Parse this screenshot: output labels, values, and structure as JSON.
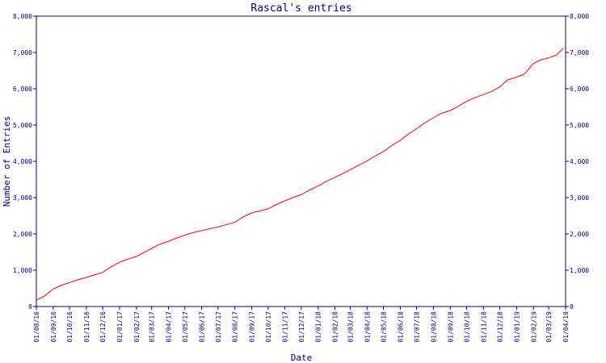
{
  "chart_data": {
    "type": "line",
    "title": "Rascal's entries",
    "xlabel": "Date",
    "ylabel": "Number of Entries",
    "ylim": [
      0,
      8000
    ],
    "yticks": [
      "0",
      "1,000",
      "2,000",
      "3,000",
      "4,000",
      "5,000",
      "6,000",
      "7,000",
      "8,000"
    ],
    "y_tick_values": [
      0,
      1000,
      2000,
      3000,
      4000,
      5000,
      6000,
      7000,
      8000
    ],
    "right_axis_mirrors_left": true,
    "xticks": [
      "01/08/16",
      "01/09/16",
      "01/10/16",
      "01/11/16",
      "01/12/16",
      "01/01/17",
      "01/02/17",
      "01/03/17",
      "01/04/17",
      "01/05/17",
      "01/06/17",
      "01/07/17",
      "01/08/17",
      "01/09/17",
      "01/10/17",
      "01/11/17",
      "01/12/17",
      "01/01/18",
      "01/02/18",
      "01/03/18",
      "01/04/18",
      "01/05/18",
      "01/06/18",
      "01/07/18",
      "01/08/18",
      "01/09/18",
      "01/10/18",
      "01/11/18",
      "01/12/18",
      "01/01/19",
      "01/02/19",
      "01/03/19",
      "01/04/19"
    ],
    "grid": false,
    "line_color": "#ff0000",
    "axis_color": "#000080",
    "series": [
      {
        "name": "",
        "x": [
          "2016-08-01",
          "2016-08-15",
          "2016-09-01",
          "2016-09-15",
          "2016-10-01",
          "2016-10-15",
          "2016-11-01",
          "2016-11-15",
          "2016-12-01",
          "2016-12-15",
          "2017-01-01",
          "2017-01-15",
          "2017-02-01",
          "2017-02-15",
          "2017-03-01",
          "2017-03-15",
          "2017-04-01",
          "2017-04-15",
          "2017-05-01",
          "2017-05-15",
          "2017-06-01",
          "2017-06-15",
          "2017-07-01",
          "2017-07-15",
          "2017-08-01",
          "2017-08-15",
          "2017-09-01",
          "2017-09-15",
          "2017-10-01",
          "2017-10-15",
          "2017-11-01",
          "2017-11-15",
          "2017-12-01",
          "2017-12-15",
          "2018-01-01",
          "2018-01-15",
          "2018-02-01",
          "2018-02-15",
          "2018-03-01",
          "2018-03-15",
          "2018-04-01",
          "2018-04-15",
          "2018-05-01",
          "2018-05-15",
          "2018-06-01",
          "2018-06-15",
          "2018-07-01",
          "2018-07-15",
          "2018-08-01",
          "2018-08-15",
          "2018-09-01",
          "2018-09-15",
          "2018-10-01",
          "2018-10-15",
          "2018-11-01",
          "2018-11-15",
          "2018-12-01",
          "2018-12-15",
          "2019-01-01",
          "2019-01-15",
          "2019-02-01",
          "2019-02-15",
          "2019-03-01",
          "2019-03-15",
          "2019-03-28"
        ],
        "y": [
          180,
          280,
          480,
          580,
          660,
          730,
          800,
          870,
          940,
          1080,
          1220,
          1300,
          1380,
          1490,
          1600,
          1710,
          1800,
          1880,
          1970,
          2030,
          2090,
          2140,
          2190,
          2250,
          2320,
          2460,
          2580,
          2630,
          2690,
          2800,
          2910,
          3000,
          3080,
          3200,
          3320,
          3440,
          3560,
          3660,
          3770,
          3880,
          4010,
          4140,
          4270,
          4420,
          4580,
          4740,
          4900,
          5050,
          5200,
          5320,
          5400,
          5510,
          5650,
          5750,
          5840,
          5920,
          6050,
          6240,
          6320,
          6400,
          6700,
          6800,
          6850,
          6930,
          7120
        ]
      }
    ]
  }
}
